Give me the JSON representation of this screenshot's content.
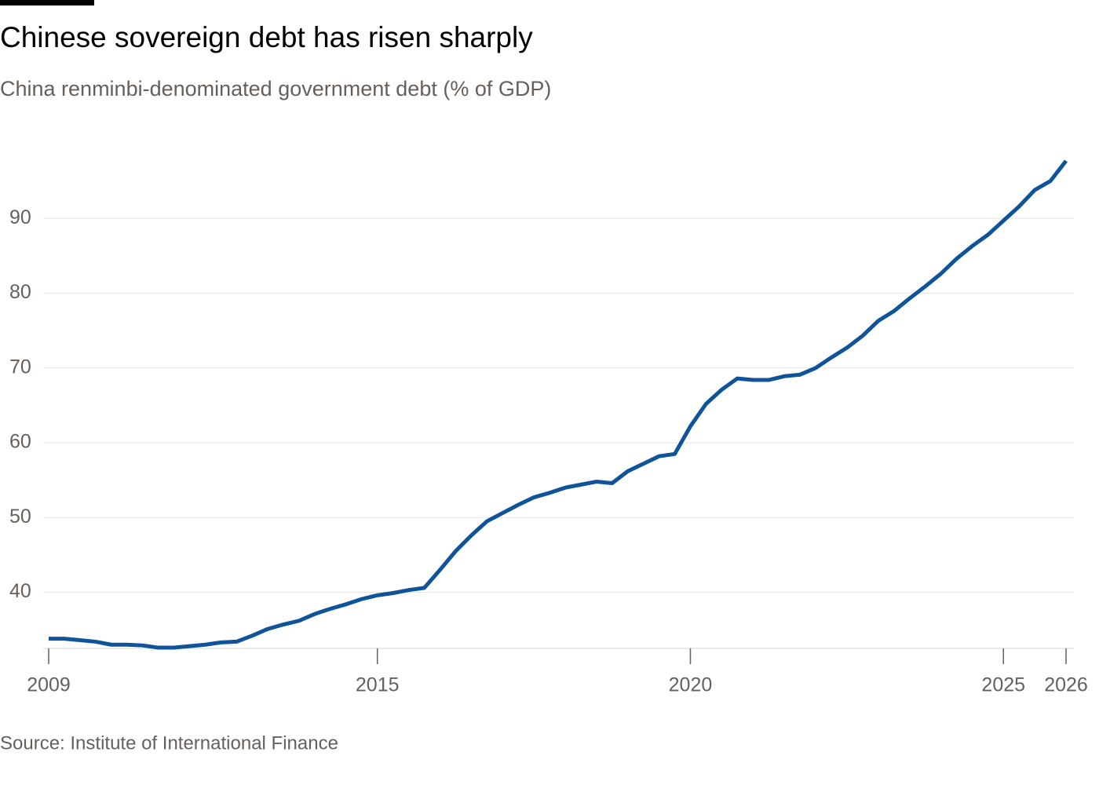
{
  "chart_data": {
    "type": "line",
    "title": "Chinese sovereign debt has risen sharply",
    "subtitle": "China renminbi-denominated government debt (% of GDP)",
    "source": "Source: Institute of International Finance",
    "x": [
      2009.75,
      2010,
      2010.25,
      2010.5,
      2010.75,
      2011,
      2011.25,
      2011.5,
      2011.75,
      2012,
      2012.25,
      2012.5,
      2012.75,
      2013,
      2013.25,
      2013.5,
      2013.75,
      2014,
      2014.25,
      2014.5,
      2014.75,
      2015,
      2015.25,
      2015.5,
      2015.75,
      2016,
      2016.25,
      2016.5,
      2016.75,
      2017,
      2017.25,
      2017.5,
      2017.75,
      2018,
      2018.25,
      2018.5,
      2018.75,
      2019,
      2019.25,
      2019.5,
      2019.75,
      2020,
      2020.25,
      2020.5,
      2020.75,
      2021,
      2021.25,
      2021.5,
      2021.75,
      2022,
      2022.25,
      2022.5,
      2022.75,
      2023,
      2023.25,
      2023.5,
      2023.75,
      2024,
      2024.25,
      2024.5,
      2024.75,
      2025,
      2025.25,
      2025.5,
      2025.75,
      2026
    ],
    "series": [
      {
        "color": "#0f5499",
        "values": [
          33.8,
          33.8,
          33.6,
          33.4,
          33.0,
          33.0,
          32.9,
          32.6,
          32.6,
          32.8,
          33.0,
          33.3,
          33.4,
          34.2,
          35.1,
          35.7,
          36.2,
          37.1,
          37.8,
          38.4,
          39.1,
          39.6,
          39.9,
          40.3,
          40.6,
          43.0,
          45.5,
          47.6,
          49.5,
          50.6,
          51.7,
          52.7,
          53.3,
          54.0,
          54.4,
          54.8,
          54.6,
          56.2,
          57.2,
          58.2,
          58.5,
          62.2,
          65.2,
          67.1,
          68.6,
          68.4,
          68.4,
          68.9,
          69.1,
          70.0,
          71.4,
          72.7,
          74.3,
          76.3,
          77.6,
          79.3,
          80.9,
          82.6,
          84.6,
          86.3,
          87.8,
          89.7,
          91.6,
          93.8,
          95.0,
          97.7
        ]
      }
    ],
    "xlim": [
      2009.75,
      2026
    ],
    "xticks": [
      {
        "value": 2009.75,
        "label": "2009"
      },
      2015,
      2020,
      2025,
      2026
    ],
    "ylim": [
      32.5,
      100
    ],
    "yticks": [
      40,
      50,
      60,
      70,
      80,
      90
    ],
    "grid": true
  }
}
